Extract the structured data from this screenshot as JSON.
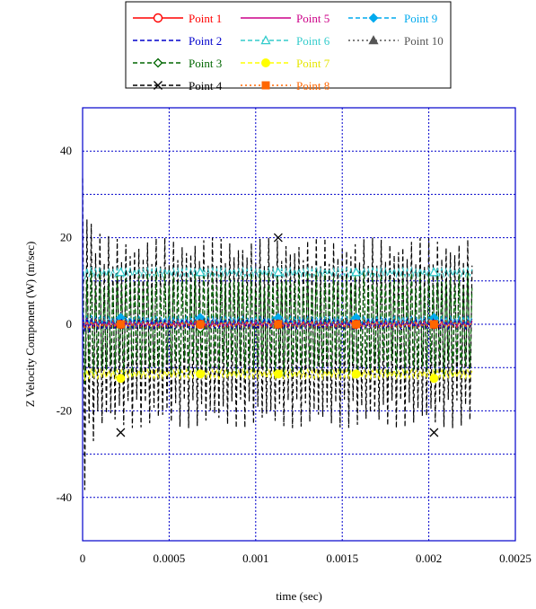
{
  "chart_data": {
    "type": "line",
    "title": "",
    "xlabel": "time (sec)",
    "ylabel": "Z Velocity Component (W) (m/sec)",
    "xlim": [
      0,
      0.0025
    ],
    "ylim": [
      -50,
      50
    ],
    "x_ticks": [
      0,
      0.0005,
      0.001,
      0.0015,
      0.002,
      0.0025
    ],
    "x_tick_labels": [
      "0",
      "0.0005",
      "0.001",
      "0.0015",
      "0.002",
      "0.0025"
    ],
    "y_ticks": [
      -40,
      -20,
      0,
      20,
      40
    ],
    "y_tick_labels": [
      "-40",
      "-20",
      "0",
      "20",
      "40"
    ],
    "grid": true,
    "legend_position": "top-center",
    "x_end": 0.00225,
    "series": [
      {
        "name": "Point 1",
        "color": "#ff0000",
        "marker": "circle-open",
        "dash": "solid",
        "mean": 0,
        "amplitude": 0.8,
        "start_amplitude": 2,
        "markers": [
          [
            0.00022,
            0
          ],
          [
            0.00068,
            0
          ],
          [
            0.00113,
            0
          ],
          [
            0.00158,
            0
          ],
          [
            0.00203,
            0
          ]
        ]
      },
      {
        "name": "Point 2",
        "color": "#0000cc",
        "marker": "none",
        "dash": "dash",
        "mean": 0,
        "amplitude": 1.2,
        "start_amplitude": 3,
        "markers": []
      },
      {
        "name": "Point 3",
        "color": "#006600",
        "marker": "diamond-open",
        "dash": "dash",
        "mean": 0,
        "amplitude": 12,
        "start_amplitude": 15,
        "markers": [
          [
            0.00022,
            0
          ],
          [
            0.00068,
            -1
          ],
          [
            0.00113,
            0
          ],
          [
            0.00158,
            0
          ],
          [
            0.00203,
            0
          ]
        ]
      },
      {
        "name": "Point 4",
        "color": "#000000",
        "marker": "x",
        "dash": "dash",
        "mean": -2,
        "amplitude": 22,
        "start_amplitude": 42,
        "markers": [
          [
            0.00022,
            -25
          ],
          [
            0.00113,
            20
          ],
          [
            0.00203,
            -25
          ]
        ]
      },
      {
        "name": "Point 5",
        "color": "#cc0088",
        "marker": "none",
        "dash": "solid",
        "mean": 0,
        "amplitude": 0.8,
        "start_amplitude": 2,
        "markers": []
      },
      {
        "name": "Point 6",
        "color": "#33cccc",
        "marker": "triangle-open",
        "dash": "dash",
        "mean": 12,
        "amplitude": 1,
        "start_amplitude": 2,
        "markers": [
          [
            0.00022,
            12
          ],
          [
            0.00068,
            12
          ],
          [
            0.00113,
            12
          ],
          [
            0.00158,
            12
          ],
          [
            0.00203,
            12
          ]
        ]
      },
      {
        "name": "Point 7",
        "color": "#ffff00",
        "marker": "circle-filled",
        "dash": "dash",
        "mean": -11.5,
        "amplitude": 1,
        "start_amplitude": 2,
        "markers": [
          [
            0.00022,
            -12.5
          ],
          [
            0.00068,
            -11.5
          ],
          [
            0.00113,
            -11.5
          ],
          [
            0.00158,
            -11.5
          ],
          [
            0.00203,
            -12.5
          ]
        ]
      },
      {
        "name": "Point 8",
        "color": "#ff6600",
        "marker": "square-filled",
        "dash": "dot",
        "mean": 0,
        "amplitude": 0.8,
        "start_amplitude": 2,
        "markers": [
          [
            0.00022,
            0
          ],
          [
            0.00068,
            0
          ],
          [
            0.00113,
            0
          ],
          [
            0.00158,
            0
          ],
          [
            0.00203,
            0
          ]
        ]
      },
      {
        "name": "Point 9",
        "color": "#00aaee",
        "marker": "diamond-filled",
        "dash": "dash",
        "mean": 1,
        "amplitude": 0.8,
        "start_amplitude": 2,
        "markers": [
          [
            0.00022,
            1.5
          ],
          [
            0.00068,
            1.5
          ],
          [
            0.00113,
            1.5
          ],
          [
            0.00158,
            1.5
          ],
          [
            0.00203,
            1.5
          ]
        ]
      },
      {
        "name": "Point 10",
        "color": "#555555",
        "marker": "triangle-filled",
        "dash": "dot",
        "mean": 0.5,
        "amplitude": 0.8,
        "start_amplitude": 2,
        "markers": []
      }
    ]
  }
}
